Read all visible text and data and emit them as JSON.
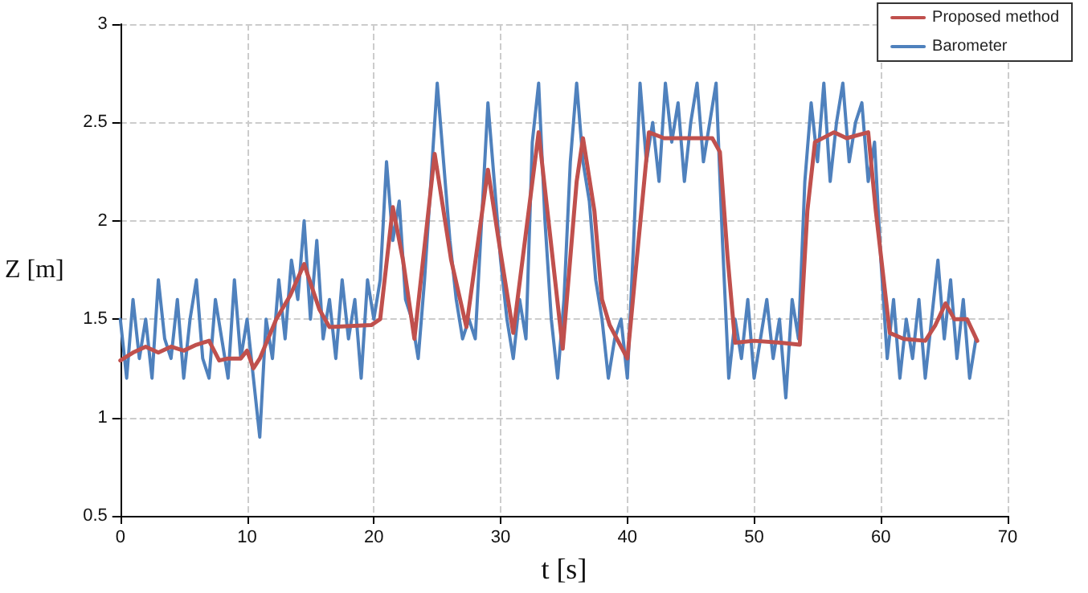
{
  "chart_data": {
    "type": "line",
    "xlabel": "t [s]",
    "ylabel": "Z [m]",
    "xlim": [
      0,
      70
    ],
    "xticks": [
      0,
      10,
      20,
      30,
      40,
      50,
      60,
      70
    ],
    "ylim": [
      0.5,
      3
    ],
    "yticks": [
      0.5,
      1,
      1.5,
      2,
      2.5,
      3
    ],
    "grid": true,
    "legend": "top right",
    "marker": "none",
    "series": [
      {
        "name": "Proposed method",
        "color": "#c0504d",
        "x": [
          0,
          1,
          2,
          3,
          4,
          5,
          6,
          7,
          7.8,
          8.5,
          9.5,
          10,
          10.5,
          11,
          12.3,
          13.4,
          14.5,
          15.7,
          16.5,
          19.8,
          20.5,
          21.5,
          22.3,
          23.2,
          24.8,
          26.1,
          27.3,
          29,
          29.8,
          31,
          33,
          34.9,
          36,
          36.5,
          37.4,
          38,
          38.6,
          40,
          40.6,
          41.7,
          42.9,
          44.6,
          46.7,
          47.3,
          47.9,
          48.5,
          50,
          52.1,
          53.6,
          54.2,
          54.8,
          56.3,
          57.3,
          59,
          59.6,
          60.7,
          61.8,
          63.5,
          64.3,
          65.1,
          65.8,
          66.8,
          67.6
        ],
        "values": [
          1.29,
          1.33,
          1.36,
          1.33,
          1.36,
          1.34,
          1.37,
          1.39,
          1.29,
          1.3,
          1.3,
          1.34,
          1.25,
          1.3,
          1.5,
          1.62,
          1.78,
          1.55,
          1.46,
          1.47,
          1.5,
          2.07,
          1.8,
          1.4,
          2.34,
          1.8,
          1.46,
          2.26,
          1.92,
          1.43,
          2.45,
          1.35,
          2.2,
          2.42,
          2.05,
          1.6,
          1.47,
          1.3,
          1.71,
          2.45,
          2.42,
          2.42,
          2.42,
          2.35,
          1.82,
          1.38,
          1.39,
          1.38,
          1.37,
          2.05,
          2.4,
          2.45,
          2.42,
          2.45,
          2.05,
          1.43,
          1.4,
          1.39,
          1.47,
          1.58,
          1.5,
          1.5,
          1.39
        ]
      },
      {
        "name": "Barometer",
        "color": "#4f81bd",
        "x": [
          0,
          0.5,
          1,
          1.5,
          2,
          2.5,
          3,
          3.5,
          4,
          4.5,
          5,
          5.5,
          6,
          6.5,
          7,
          7.5,
          8,
          8.5,
          9,
          9.5,
          10,
          10.5,
          11,
          11.5,
          12,
          12.5,
          13,
          13.5,
          14,
          14.5,
          15,
          15.5,
          16,
          16.5,
          17,
          17.5,
          18,
          18.5,
          19,
          19.5,
          20,
          20.5,
          21,
          21.5,
          22,
          22.5,
          23,
          23.5,
          24,
          24.5,
          25,
          25.5,
          26,
          26.5,
          27,
          27.5,
          28,
          28.5,
          29,
          29.5,
          30,
          30.5,
          31,
          31.5,
          32,
          32.5,
          33,
          33.5,
          34,
          34.5,
          35,
          35.5,
          36,
          36.5,
          37,
          37.5,
          38,
          38.5,
          39,
          39.5,
          40,
          40.5,
          41,
          41.5,
          42,
          42.5,
          43,
          43.5,
          44,
          44.5,
          45,
          45.5,
          46,
          46.5,
          47,
          47.5,
          48,
          48.5,
          49,
          49.5,
          50,
          50.5,
          51,
          51.5,
          52,
          52.5,
          53,
          53.5,
          54,
          54.5,
          55,
          55.5,
          56,
          56.5,
          57,
          57.5,
          58,
          58.5,
          59,
          59.5,
          60,
          60.5,
          61,
          61.5,
          62,
          62.5,
          63,
          63.5,
          64,
          64.5,
          65,
          65.5,
          66,
          66.5,
          67,
          67.5
        ],
        "values": [
          1.5,
          1.2,
          1.6,
          1.3,
          1.5,
          1.2,
          1.7,
          1.4,
          1.3,
          1.6,
          1.2,
          1.5,
          1.7,
          1.3,
          1.2,
          1.6,
          1.4,
          1.2,
          1.7,
          1.3,
          1.5,
          1.2,
          0.9,
          1.5,
          1.3,
          1.7,
          1.4,
          1.8,
          1.6,
          2.0,
          1.5,
          1.9,
          1.4,
          1.6,
          1.3,
          1.7,
          1.4,
          1.6,
          1.2,
          1.7,
          1.5,
          1.7,
          2.3,
          1.9,
          2.1,
          1.6,
          1.5,
          1.3,
          1.7,
          2.2,
          2.7,
          2.3,
          1.9,
          1.6,
          1.4,
          1.5,
          1.4,
          2.0,
          2.6,
          2.2,
          1.8,
          1.5,
          1.3,
          1.6,
          1.4,
          2.4,
          2.7,
          2.0,
          1.5,
          1.2,
          1.6,
          2.3,
          2.7,
          2.3,
          2.1,
          1.7,
          1.5,
          1.2,
          1.4,
          1.5,
          1.2,
          1.9,
          2.7,
          2.3,
          2.5,
          2.2,
          2.7,
          2.4,
          2.6,
          2.2,
          2.5,
          2.7,
          2.3,
          2.5,
          2.7,
          1.9,
          1.2,
          1.5,
          1.3,
          1.6,
          1.2,
          1.4,
          1.6,
          1.3,
          1.5,
          1.1,
          1.6,
          1.4,
          2.2,
          2.6,
          2.3,
          2.7,
          2.2,
          2.5,
          2.7,
          2.3,
          2.5,
          2.6,
          2.2,
          2.4,
          1.8,
          1.3,
          1.6,
          1.2,
          1.5,
          1.3,
          1.6,
          1.2,
          1.5,
          1.8,
          1.4,
          1.7,
          1.3,
          1.6,
          1.2,
          1.4
        ]
      }
    ]
  }
}
